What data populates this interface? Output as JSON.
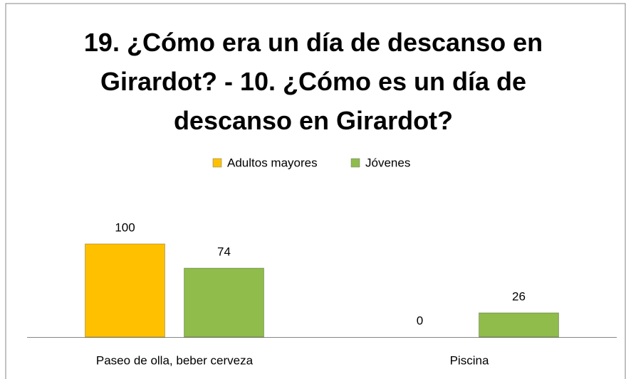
{
  "chart_data": {
    "type": "bar",
    "title": "19. ¿Cómo era un día de descanso en Girardot? - 10. ¿Cómo es un día de descanso en Girardot?",
    "categories": [
      "Paseo de olla, beber cerveza",
      "Piscina"
    ],
    "series": [
      {
        "name": "Adultos mayores",
        "color": "#ffc000",
        "values": [
          100,
          0
        ]
      },
      {
        "name": "Jóvenes",
        "color": "#8fbc4a",
        "values": [
          74,
          26
        ]
      }
    ],
    "legend": "top"
  }
}
